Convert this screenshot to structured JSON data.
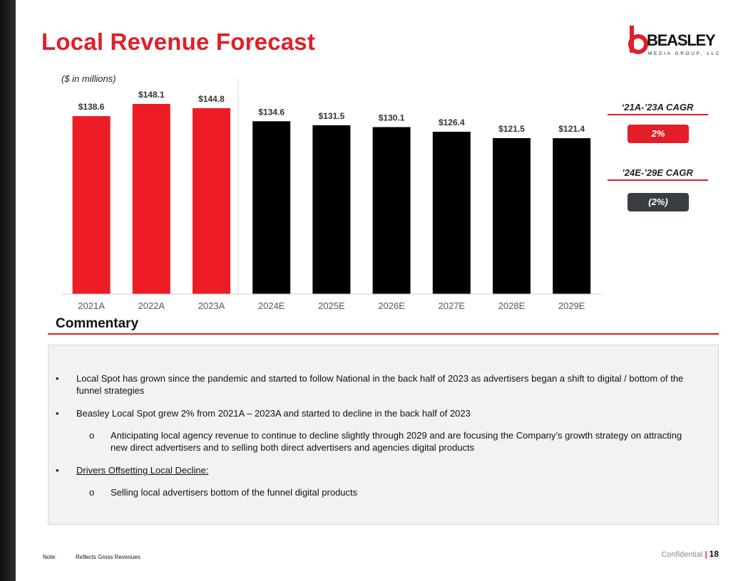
{
  "title": "Local Revenue Forecast",
  "logo": {
    "word": "BEASLEY",
    "subtitle": "MEDIA GROUP, LLC",
    "text": "BEASLEY MEDIA GROUP, LLC"
  },
  "units_label": "($ in millions)",
  "colors": {
    "accent": "#e31e26",
    "actual_bar": "#ed1c24",
    "forecast_bar": "#000000",
    "badge_dark": "#3a3d42"
  },
  "chart_data": {
    "type": "bar",
    "title": "Local Revenue Forecast",
    "ylabel": "($ in millions)",
    "xlabel": "",
    "categories": [
      "2021A",
      "2022A",
      "2023A",
      "2024E",
      "2025E",
      "2026E",
      "2027E",
      "2028E",
      "2029E"
    ],
    "values": [
      138.6,
      148.1,
      144.8,
      134.6,
      131.5,
      130.1,
      126.4,
      121.5,
      121.4
    ],
    "value_labels": [
      "$138.6",
      "$148.1",
      "$144.8",
      "$134.6",
      "$131.5",
      "$130.1",
      "$126.4",
      "$121.5",
      "$121.4"
    ],
    "series_kind": [
      "actual",
      "actual",
      "actual",
      "estimate",
      "estimate",
      "estimate",
      "estimate",
      "estimate",
      "estimate"
    ],
    "ylim": [
      0,
      148.1
    ],
    "grid": false,
    "legend": "none"
  },
  "cagr": [
    {
      "label": "‘21A-’23A CAGR",
      "value": "2%",
      "color": "#e31e26"
    },
    {
      "label": "’24E-’29E CAGR",
      "value": "(2%)",
      "color": "#3a3d42"
    }
  ],
  "commentary": {
    "heading": "Commentary",
    "bullet_char": "•",
    "sub_bullet_char": "o",
    "items": [
      "Local Spot has grown since the pandemic and started to follow National in the back half of 2023 as advertisers began a shift to digital / bottom of the funnel strategies",
      "Beasley Local Spot grew 2% from 2021A – 2023A and started to decline in the back half of 2023",
      "Anticipating local agency revenue to continue to decline slightly through 2029 and are focusing the Company’s growth strategy on attracting new direct advertisers and to selling both direct advertisers and agencies digital products",
      "Drivers Offsetting Local Decline:",
      "Selling local advertisers bottom of the funnel digital products"
    ]
  },
  "footnote": {
    "label": "Note:",
    "text": "Reflects Gross Revenues"
  },
  "footer": {
    "confidential": "Confidential",
    "separator": "|",
    "page_number": "18"
  }
}
